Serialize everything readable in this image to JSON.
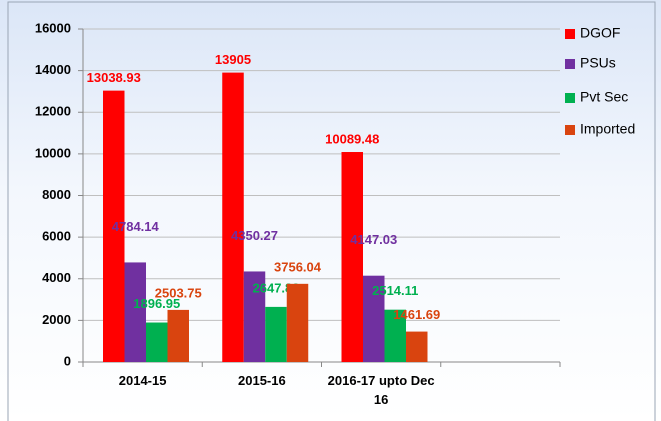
{
  "chart_data": {
    "type": "bar",
    "categories": [
      "2014-15",
      "2015-16",
      "2016-17 upto Dec 16",
      null
    ],
    "series": [
      {
        "name": "DGOF",
        "color": "#ff0000",
        "values": [
          13038.93,
          13905,
          10089.48,
          null
        ]
      },
      {
        "name": "PSUs",
        "color": "#7030a0",
        "values": [
          4784.14,
          4350.27,
          4147.03,
          null
        ]
      },
      {
        "name": "Pvt Sec",
        "color": "#00b050",
        "values": [
          1896.95,
          2647.83,
          2514.11,
          null
        ]
      },
      {
        "name": "Imported",
        "color": "#d9440f",
        "values": [
          2503.75,
          3756.04,
          1461.69,
          null
        ]
      }
    ],
    "ylim": [
      0,
      16000
    ],
    "yticks": [
      0,
      2000,
      4000,
      6000,
      8000,
      10000,
      12000,
      14000,
      16000
    ],
    "grid": true,
    "legend": "right"
  }
}
